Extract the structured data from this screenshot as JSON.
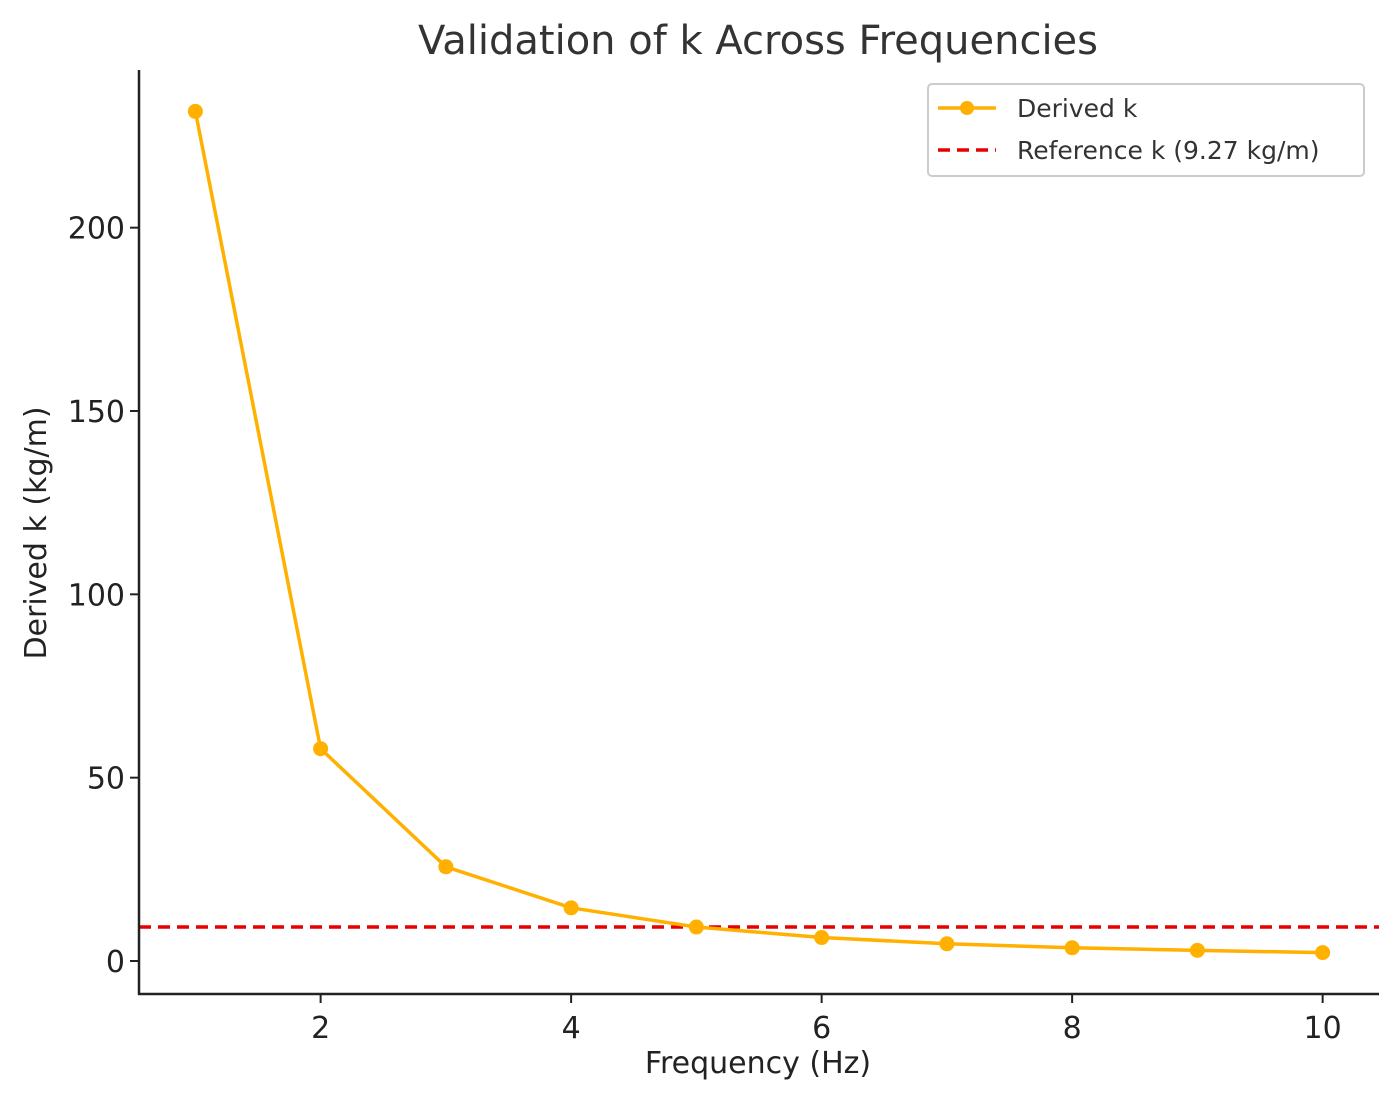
{
  "chart_data": {
    "type": "line",
    "title": "Validation of k Across Frequencies",
    "xlabel": "Frequency (Hz)",
    "ylabel": "Derived k (kg/m)",
    "x": [
      1,
      2,
      3,
      4,
      5,
      6,
      7,
      8,
      9,
      10
    ],
    "xlim": [
      0.55,
      10.45
    ],
    "ylim": [
      -9,
      243
    ],
    "x_ticks": [
      2,
      4,
      6,
      8,
      10
    ],
    "y_ticks": [
      0,
      50,
      100,
      150,
      200
    ],
    "series": [
      {
        "name": "Derived k",
        "values": [
          231.7,
          57.9,
          25.7,
          14.5,
          9.27,
          6.4,
          4.7,
          3.6,
          2.9,
          2.3
        ],
        "color": "#FFB000",
        "style": "solid",
        "marker": "circle"
      }
    ],
    "reference_line": {
      "name": "Reference k (9.27 kg/m)",
      "y": 9.27,
      "color": "#E60000",
      "style": "dashed"
    },
    "legend": {
      "placement": "top-right"
    },
    "grid": false
  }
}
